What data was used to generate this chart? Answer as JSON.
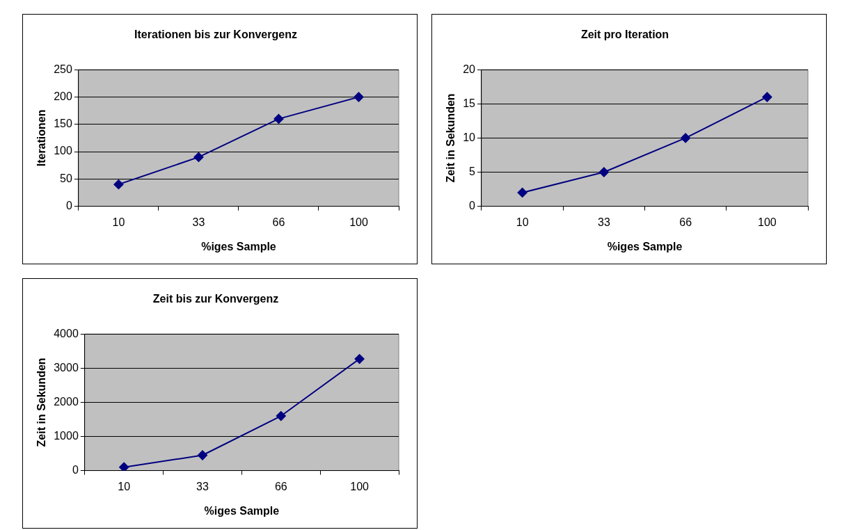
{
  "chart_data": [
    {
      "type": "line",
      "title": "Iterationen bis zur Konvergenz",
      "xlabel": "%iges Sample",
      "ylabel": "Iterationen",
      "categories": [
        "10",
        "33",
        "66",
        "100"
      ],
      "series": [
        {
          "color": "#000080",
          "values": [
            40,
            90,
            160,
            200
          ]
        }
      ],
      "ylim": [
        0,
        250
      ],
      "yticks": [
        0,
        50,
        100,
        150,
        200,
        250
      ],
      "grid": "y",
      "legend": false,
      "marker": "diamond",
      "line_style": "solid"
    },
    {
      "type": "line",
      "title": "Zeit pro Iteration",
      "xlabel": "%iges Sample",
      "ylabel": "Zeit in Sekunden",
      "categories": [
        "10",
        "33",
        "66",
        "100"
      ],
      "series": [
        {
          "color": "#000080",
          "values": [
            2,
            5,
            10,
            16
          ]
        }
      ],
      "ylim": [
        0,
        20
      ],
      "yticks": [
        0,
        5,
        10,
        15,
        20
      ],
      "grid": "y",
      "legend": false,
      "marker": "diamond",
      "line_style": "solid"
    },
    {
      "type": "line",
      "title": "Zeit bis zur Konvergenz",
      "xlabel": "%iges Sample",
      "ylabel": "Zeit in Sekunden",
      "categories": [
        "10",
        "33",
        "66",
        "100"
      ],
      "series": [
        {
          "color": "#000080",
          "values": [
            100,
            450,
            1600,
            3270
          ]
        }
      ],
      "ylim": [
        0,
        4000
      ],
      "yticks": [
        0,
        1000,
        2000,
        3000,
        4000
      ],
      "grid": "y",
      "legend": false,
      "marker": "diamond",
      "line_style": "solid"
    }
  ]
}
